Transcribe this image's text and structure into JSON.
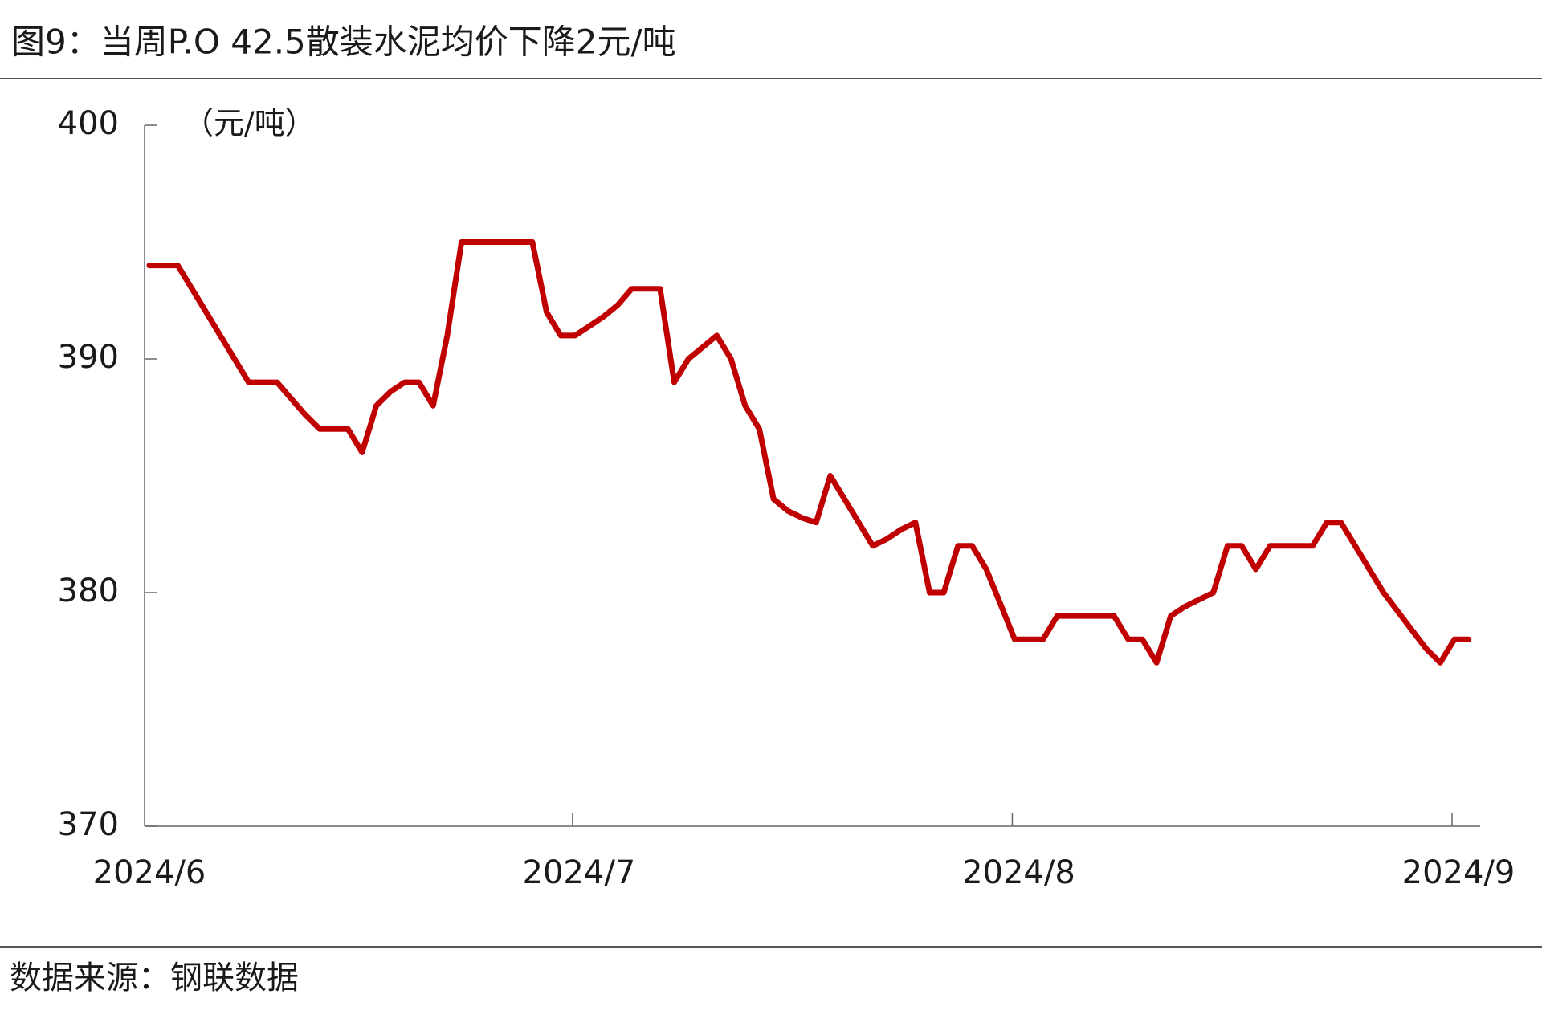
{
  "chart_data": {
    "type": "line",
    "title": "图9：当周P.O 42.5散装水泥均价下降2元/吨",
    "y_label": "（元/吨）",
    "source": "数据来源：钢联数据",
    "categories": [
      "2024/6",
      null,
      null,
      null,
      null,
      null,
      null,
      null,
      null,
      null,
      null,
      null,
      null,
      null,
      null,
      null,
      null,
      null,
      null,
      null,
      null,
      null,
      null,
      null,
      null,
      null,
      null,
      null,
      null,
      null,
      "2024/7",
      null,
      null,
      null,
      null,
      null,
      null,
      null,
      null,
      null,
      null,
      null,
      null,
      null,
      null,
      null,
      null,
      null,
      null,
      null,
      null,
      null,
      null,
      null,
      null,
      null,
      null,
      null,
      null,
      null,
      null,
      "2024/8",
      null,
      null,
      null,
      null,
      null,
      null,
      null,
      null,
      null,
      null,
      null,
      null,
      null,
      null,
      null,
      null,
      null,
      null,
      null,
      null,
      null,
      null,
      null,
      null,
      null,
      null,
      null,
      null,
      null,
      null,
      "2024/9",
      null
    ],
    "series": [
      {
        "name": "P.O 42.5散装水泥均价",
        "color": "#c00000",
        "values": [
          394,
          394,
          394,
          393,
          392,
          391,
          390,
          389,
          389,
          389,
          388.3,
          387.6,
          387,
          387,
          387,
          386,
          388,
          388.6,
          389,
          389,
          388,
          391,
          395,
          395,
          395,
          395,
          395,
          395,
          392,
          391,
          391,
          391.4,
          391.8,
          392.3,
          393,
          393,
          393,
          389,
          390,
          390.5,
          391,
          390,
          388,
          387,
          384,
          383.5,
          383.2,
          383,
          385,
          384,
          383,
          382,
          382.3,
          382.7,
          383,
          380,
          380,
          382,
          382,
          381,
          379.5,
          378,
          378,
          378,
          379,
          379,
          379,
          379,
          379,
          378,
          378,
          377,
          379,
          379.4,
          379.7,
          380,
          382,
          382,
          381,
          382,
          382,
          382,
          382,
          383,
          383,
          382,
          381,
          380,
          379.2,
          378.4,
          377.6,
          377,
          378,
          378
        ]
      }
    ],
    "ylim": [
      370,
      400
    ],
    "yticks": [
      370,
      380,
      390,
      400
    ],
    "grid": false,
    "legend": false
  }
}
